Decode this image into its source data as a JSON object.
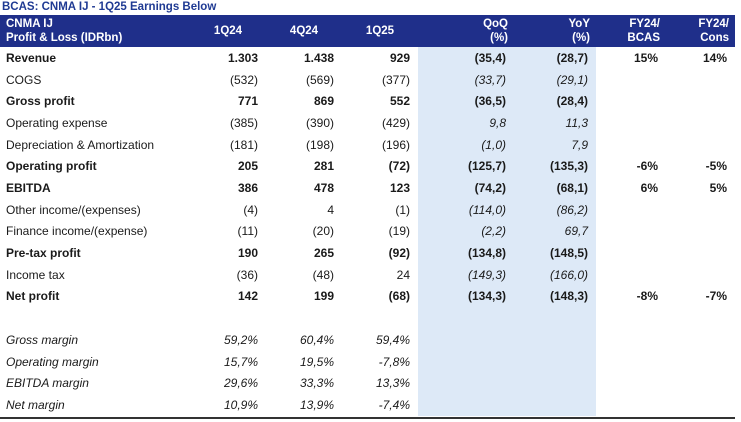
{
  "title": "BCAS: CNMA IJ - 1Q25 Earnings Below",
  "header": {
    "label_line1": "CNMA IJ",
    "label_line2": "Profit & Loss (IDRbn)",
    "q1": "1Q24",
    "q2": "4Q24",
    "q3": "1Q25",
    "qoq_line1": "QoQ",
    "qoq_line2": "(%)",
    "yoy_line1": "YoY",
    "yoy_line2": "(%)",
    "fy_bcas_line1": "FY24/",
    "fy_bcas_line2": "BCAS",
    "fy_cons_line1": "FY24/",
    "fy_cons_line2": "Cons"
  },
  "rows": [
    {
      "label": "Revenue",
      "q1": "1.303",
      "q2": "1.438",
      "q3": "929",
      "qoq": "(35,4)",
      "yoy": "(28,7)",
      "fy_bcas": "15%",
      "fy_cons": "14%"
    },
    {
      "label": "COGS",
      "q1": "(532)",
      "q2": "(569)",
      "q3": "(377)",
      "qoq": "(33,7)",
      "yoy": "(29,1)",
      "fy_bcas": "",
      "fy_cons": ""
    },
    {
      "label": "Gross profit",
      "q1": "771",
      "q2": "869",
      "q3": "552",
      "qoq": "(36,5)",
      "yoy": "(28,4)",
      "fy_bcas": "",
      "fy_cons": ""
    },
    {
      "label": "Operating expense",
      "q1": "(385)",
      "q2": "(390)",
      "q3": "(429)",
      "qoq": "9,8",
      "yoy": "11,3",
      "fy_bcas": "",
      "fy_cons": ""
    },
    {
      "label": "Depreciation & Amortization",
      "q1": "(181)",
      "q2": "(198)",
      "q3": "(196)",
      "qoq": "(1,0)",
      "yoy": "7,9",
      "fy_bcas": "",
      "fy_cons": ""
    },
    {
      "label": "Operating profit",
      "q1": "205",
      "q2": "281",
      "q3": "(72)",
      "qoq": "(125,7)",
      "yoy": "(135,3)",
      "fy_bcas": "-6%",
      "fy_cons": "-5%"
    },
    {
      "label": "EBITDA",
      "q1": "386",
      "q2": "478",
      "q3": "123",
      "qoq": "(74,2)",
      "yoy": "(68,1)",
      "fy_bcas": "6%",
      "fy_cons": "5%"
    },
    {
      "label": "Other income/(expenses)",
      "q1": "(4)",
      "q2": "4",
      "q3": "(1)",
      "qoq": "(114,0)",
      "yoy": "(86,2)",
      "fy_bcas": "",
      "fy_cons": ""
    },
    {
      "label": "Finance income/(expense)",
      "q1": "(11)",
      "q2": "(20)",
      "q3": "(19)",
      "qoq": "(2,2)",
      "yoy": "69,7",
      "fy_bcas": "",
      "fy_cons": ""
    },
    {
      "label": "Pre-tax profit",
      "q1": "190",
      "q2": "265",
      "q3": "(92)",
      "qoq": "(134,8)",
      "yoy": "(148,5)",
      "fy_bcas": "",
      "fy_cons": ""
    },
    {
      "label": "Income tax",
      "q1": "(36)",
      "q2": "(48)",
      "q3": "24",
      "qoq": "(149,3)",
      "yoy": "(166,0)",
      "fy_bcas": "",
      "fy_cons": ""
    },
    {
      "label": "Net profit",
      "q1": "142",
      "q2": "199",
      "q3": "(68)",
      "qoq": "(134,3)",
      "yoy": "(148,3)",
      "fy_bcas": "-8%",
      "fy_cons": "-7%"
    },
    {
      "label": "",
      "q1": "",
      "q2": "",
      "q3": "",
      "qoq": "",
      "yoy": "",
      "fy_bcas": "",
      "fy_cons": ""
    },
    {
      "label": "Gross margin",
      "q1": "59,2%",
      "q2": "60,4%",
      "q3": "59,4%",
      "qoq": "",
      "yoy": "",
      "fy_bcas": "",
      "fy_cons": ""
    },
    {
      "label": "Operating margin",
      "q1": "15,7%",
      "q2": "19,5%",
      "q3": "-7,8%",
      "qoq": "",
      "yoy": "",
      "fy_bcas": "",
      "fy_cons": ""
    },
    {
      "label": "EBITDA margin",
      "q1": "29,6%",
      "q2": "33,3%",
      "q3": "13,3%",
      "qoq": "",
      "yoy": "",
      "fy_bcas": "",
      "fy_cons": ""
    },
    {
      "label": "Net margin",
      "q1": "10,9%",
      "q2": "13,9%",
      "q3": "-7,4%",
      "qoq": "",
      "yoy": "",
      "fy_bcas": "",
      "fy_cons": ""
    }
  ],
  "colors": {
    "header_bg": "#1f2f8a",
    "title_text": "#1f3a93",
    "change_col_shade": "#dde9f7"
  }
}
